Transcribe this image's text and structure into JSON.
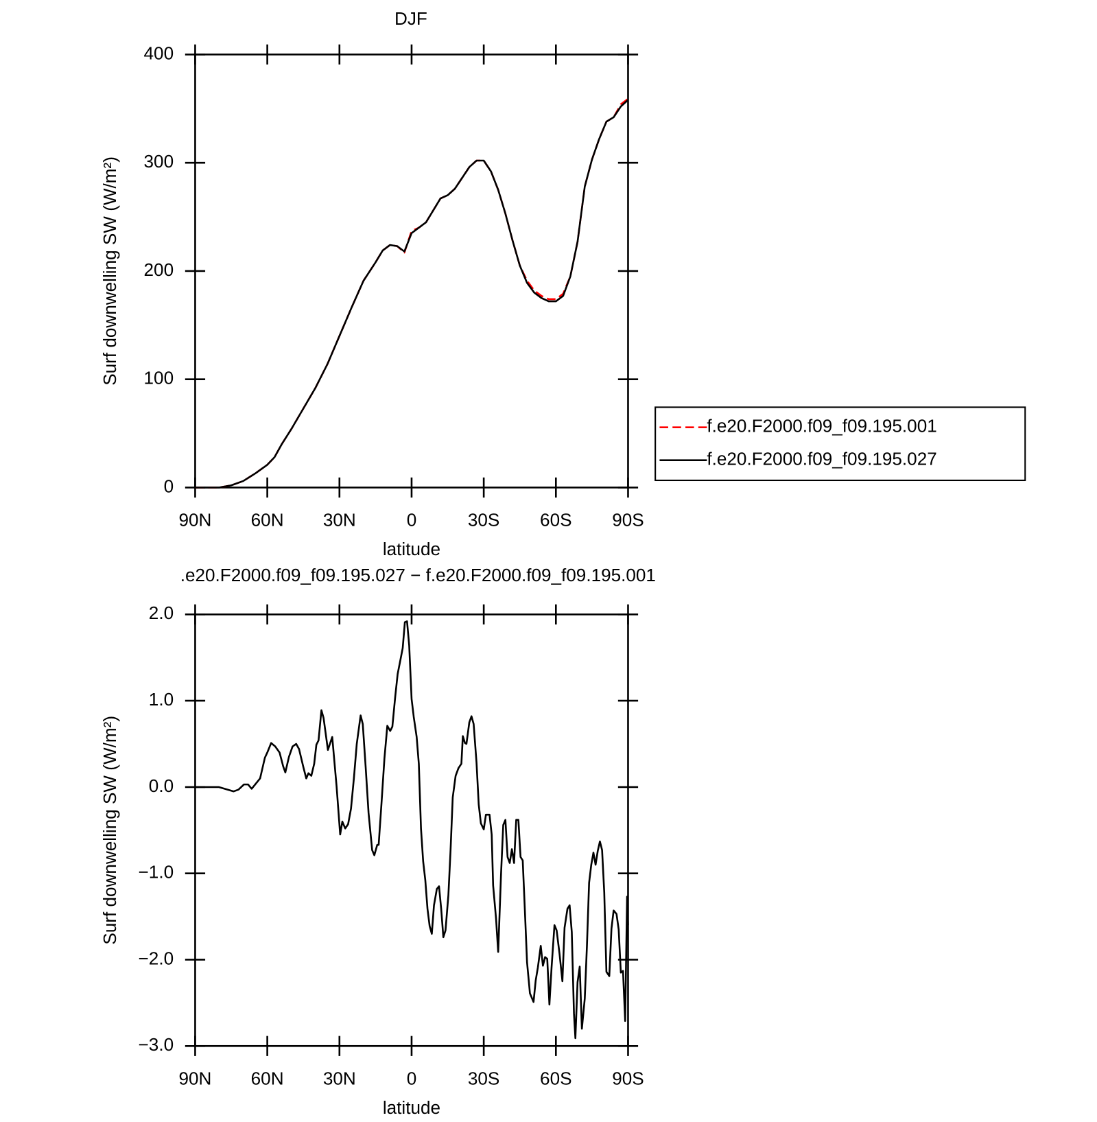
{
  "chart_data": [
    {
      "type": "line",
      "title": "DJF",
      "xlabel": "latitude",
      "ylabel": "Surf downwelling SW (W/m²)",
      "xlim": [
        90,
        -90
      ],
      "xticks": [
        {
          "value": 90,
          "label": "90N"
        },
        {
          "value": 60,
          "label": "60N"
        },
        {
          "value": 30,
          "label": "30N"
        },
        0,
        {
          "value": -30,
          "label": "30S"
        },
        {
          "value": -60,
          "label": "60S"
        },
        {
          "value": -90,
          "label": "90S"
        }
      ],
      "ylim": [
        0,
        400
      ],
      "yticks": [
        0,
        100,
        200,
        300,
        400
      ],
      "legend": "outside-right",
      "x": [
        90,
        80,
        75,
        70,
        65,
        60,
        57,
        54,
        50,
        45,
        40,
        35,
        30,
        25,
        20,
        15,
        12,
        9,
        6,
        3,
        0,
        -3,
        -6,
        -9,
        -12,
        -15,
        -18,
        -21,
        -24,
        -27,
        -30,
        -33,
        -36,
        -39,
        -42,
        -45,
        -48,
        -51,
        -54,
        -57,
        -60,
        -63,
        -66,
        -69,
        -72,
        -75,
        -78,
        -81,
        -84,
        -87,
        -90
      ],
      "series": [
        {
          "name": "f.e20.F2000.f09_f09.195.001",
          "color": "#ff0000",
          "dashed": true,
          "values": [
            0,
            0,
            2,
            6,
            13,
            21,
            28,
            40,
            54,
            73,
            92,
            114,
            140,
            166,
            191,
            208,
            219,
            224,
            223,
            217,
            237,
            240,
            245,
            256,
            267,
            270,
            276,
            286,
            296,
            302,
            302,
            292,
            275,
            253,
            228,
            205,
            191,
            182,
            177,
            174,
            174,
            179,
            195,
            227,
            278,
            303,
            322,
            338,
            342,
            354,
            359
          ]
        },
        {
          "name": "f.e20.F2000.f09_f09.195.027",
          "color": "#000000",
          "dashed": false,
          "values": [
            0,
            0,
            2,
            6,
            13,
            21,
            28,
            40,
            54,
            73,
            92,
            114,
            140,
            166,
            191,
            208,
            219,
            224,
            223,
            218,
            235,
            240,
            245,
            256,
            267,
            270,
            276,
            286,
            296,
            302,
            302,
            292,
            275,
            253,
            228,
            205,
            189,
            180,
            175,
            172,
            172,
            177,
            195,
            227,
            278,
            303,
            322,
            338,
            342,
            352,
            358
          ]
        }
      ]
    },
    {
      "type": "line",
      "title": ".e20.F2000.f09_f09.195.027 − f.e20.F2000.f09_f09.195.001",
      "xlabel": "latitude",
      "ylabel": "Surf downwelling SW (W/m²)",
      "xlim": [
        90,
        -90
      ],
      "xticks": [
        {
          "value": 90,
          "label": "90N"
        },
        {
          "value": 60,
          "label": "60N"
        },
        {
          "value": 30,
          "label": "30N"
        },
        0,
        {
          "value": -30,
          "label": "30S"
        },
        {
          "value": -60,
          "label": "60S"
        },
        {
          "value": -90,
          "label": "90S"
        }
      ],
      "ylim": [
        -3,
        2
      ],
      "yticks": [
        {
          "value": -3,
          "label": "−3.0"
        },
        {
          "value": -2,
          "label": "−2.0"
        },
        {
          "value": -1,
          "label": "−1.0"
        },
        {
          "value": 0,
          "label": "0.0"
        },
        {
          "value": 1,
          "label": "1.0"
        },
        {
          "value": 2,
          "label": "2.0"
        }
      ],
      "x": [
        90,
        80.2,
        74,
        72,
        69.7,
        68,
        66.5,
        63,
        61,
        60,
        58.4,
        56.7,
        54.9,
        53.4,
        52.5,
        51,
        49.5,
        48,
        46.8,
        45,
        43.8,
        42.9,
        41.7,
        40.5,
        39.6,
        38.7,
        37.5,
        36.6,
        34.8,
        33,
        31.2,
        29.7,
        28.8,
        27.6,
        26.4,
        25.2,
        24,
        22.8,
        21.2,
        20.3,
        19.1,
        17.9,
        16.4,
        15.5,
        14.3,
        13.7,
        12.5,
        11.3,
        10.1,
        8.9,
        8,
        6.8,
        5.8,
        4.6,
        3.7,
        2.8,
        1.9,
        1,
        0,
        -0.9,
        -2.1,
        -3,
        -3.9,
        -4.8,
        -5.7,
        -6.6,
        -7.5,
        -8.4,
        -9.3,
        -10.5,
        -11.4,
        -12.3,
        -13.2,
        -14.1,
        -15.3,
        -16.2,
        -17.1,
        -18.3,
        -19.5,
        -20.7,
        -21.3,
        -22.2,
        -22.8,
        -24,
        -24.9,
        -25.8,
        -27,
        -27.9,
        -28.8,
        -30,
        -30.9,
        -32.4,
        -33.3,
        -33.9,
        -35.1,
        -36,
        -37.2,
        -38.1,
        -39,
        -39.9,
        -40.8,
        -41.7,
        -42.6,
        -43.5,
        -44.4,
        -45.3,
        -46.2,
        -47.1,
        -48,
        -49.2,
        -50.7,
        -51.6,
        -52.5,
        -53.7,
        -54.6,
        -55.5,
        -56.4,
        -57.3,
        -58.2,
        -59.4,
        -60.3,
        -61.5,
        -62.7,
        -63.6,
        -64.8,
        -65.7,
        -66.6,
        -67.5,
        -68.1,
        -69,
        -69.9,
        -70.8,
        -72,
        -72.9,
        -73.8,
        -74.7,
        -75.6,
        -76.5,
        -77.4,
        -78.3,
        -79.2,
        -80.1,
        -81,
        -82.2,
        -83.1,
        -84,
        -85.2,
        -86.1,
        -87,
        -87.9,
        -88.8,
        -89.6,
        -90
      ],
      "series": [
        {
          "color": "#000000",
          "values": [
            0,
            0,
            -0.05,
            -0.03,
            0.03,
            0.03,
            -0.02,
            0.1,
            0.34,
            0.4,
            0.51,
            0.47,
            0.4,
            0.24,
            0.17,
            0.35,
            0.47,
            0.5,
            0.44,
            0.23,
            0.1,
            0.16,
            0.13,
            0.27,
            0.49,
            0.54,
            0.89,
            0.8,
            0.43,
            0.58,
            0.01,
            -0.55,
            -0.4,
            -0.48,
            -0.43,
            -0.25,
            0.1,
            0.5,
            0.83,
            0.73,
            0.23,
            -0.3,
            -0.73,
            -0.79,
            -0.67,
            -0.67,
            -0.18,
            0.33,
            0.71,
            0.65,
            0.7,
            1.05,
            1.31,
            1.48,
            1.61,
            1.91,
            1.92,
            1.64,
            1.02,
            0.81,
            0.58,
            0.27,
            -0.48,
            -0.86,
            -1.08,
            -1.41,
            -1.61,
            -1.7,
            -1.37,
            -1.18,
            -1.15,
            -1.41,
            -1.74,
            -1.66,
            -1.25,
            -0.73,
            -0.12,
            0.13,
            0.22,
            0.27,
            0.59,
            0.51,
            0.5,
            0.75,
            0.82,
            0.73,
            0.28,
            -0.2,
            -0.42,
            -0.49,
            -0.32,
            -0.32,
            -0.55,
            -1.14,
            -1.52,
            -1.91,
            -1.0,
            -0.44,
            -0.38,
            -0.81,
            -0.88,
            -0.72,
            -0.88,
            -0.38,
            -0.38,
            -0.81,
            -0.85,
            -1.43,
            -2.03,
            -2.39,
            -2.49,
            -2.24,
            -2.09,
            -1.84,
            -2.07,
            -1.97,
            -1.99,
            -2.52,
            -2.09,
            -1.6,
            -1.66,
            -1.93,
            -2.25,
            -1.63,
            -1.41,
            -1.37,
            -1.68,
            -2.62,
            -2.91,
            -2.26,
            -2.08,
            -2.8,
            -2.45,
            -1.84,
            -1.11,
            -0.9,
            -0.76,
            -0.9,
            -0.74,
            -0.63,
            -0.73,
            -1.22,
            -2.14,
            -2.19,
            -1.64,
            -1.43,
            -1.47,
            -1.65,
            -2.15,
            -2.13,
            -2.71,
            -1.27,
            -1.6
          ]
        }
      ]
    }
  ]
}
